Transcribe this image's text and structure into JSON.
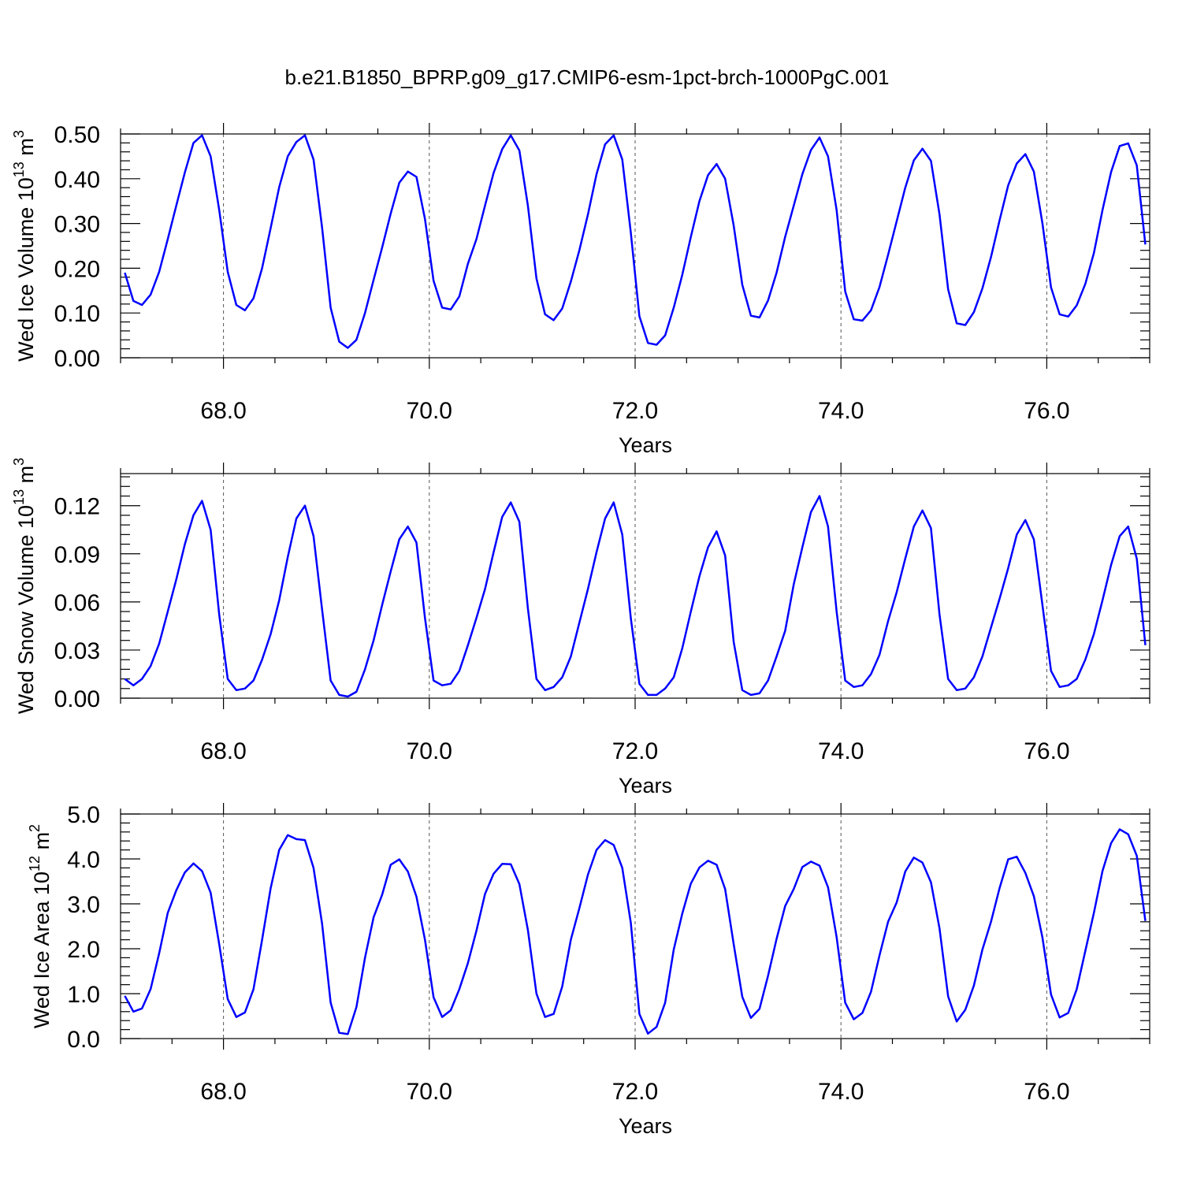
{
  "title": "b.e21.B1850_BPRP.g09_g17.CMIP6-esm-1pct-brch-1000PgC.001",
  "x_tick_labels": [
    "68.0",
    "70.0",
    "72.0",
    "74.0",
    "76.0"
  ],
  "colors": {
    "series": "#0000ff",
    "frame": "#000000",
    "refline": "#555555"
  },
  "chart_data": [
    {
      "type": "line",
      "xlabel": "Years",
      "ylabel": "Wed Ice Volume 10",
      "ylabel_exp": "13",
      "ylabel_unit": " m",
      "ylabel_unit_exp": "3",
      "xlim": [
        67.0,
        77.0
      ],
      "ylim": [
        0.0,
        0.5
      ],
      "xticks": [
        68,
        70,
        72,
        74,
        76
      ],
      "yticks": [
        0.0,
        0.1,
        0.2,
        0.3,
        0.4,
        0.5
      ],
      "ytick_labels": [
        "0.00",
        "0.10",
        "0.20",
        "0.30",
        "0.40",
        "0.50"
      ],
      "x_start": 67.0417,
      "x_step": 0.08333,
      "values": [
        0.19,
        0.127,
        0.118,
        0.141,
        0.192,
        0.265,
        0.34,
        0.414,
        0.48,
        0.497,
        0.45,
        0.33,
        0.192,
        0.118,
        0.106,
        0.133,
        0.2,
        0.29,
        0.381,
        0.45,
        0.482,
        0.497,
        0.443,
        0.29,
        0.112,
        0.036,
        0.022,
        0.04,
        0.1,
        0.174,
        0.246,
        0.322,
        0.391,
        0.416,
        0.404,
        0.31,
        0.172,
        0.112,
        0.108,
        0.137,
        0.21,
        0.265,
        0.34,
        0.413,
        0.466,
        0.497,
        0.463,
        0.34,
        0.177,
        0.097,
        0.084,
        0.11,
        0.17,
        0.24,
        0.32,
        0.41,
        0.477,
        0.497,
        0.443,
        0.28,
        0.093,
        0.033,
        0.029,
        0.05,
        0.112,
        0.185,
        0.27,
        0.35,
        0.408,
        0.433,
        0.4,
        0.295,
        0.163,
        0.094,
        0.09,
        0.128,
        0.19,
        0.27,
        0.34,
        0.41,
        0.464,
        0.492,
        0.45,
        0.33,
        0.148,
        0.086,
        0.083,
        0.106,
        0.158,
        0.23,
        0.305,
        0.38,
        0.441,
        0.467,
        0.44,
        0.32,
        0.153,
        0.077,
        0.073,
        0.102,
        0.155,
        0.225,
        0.307,
        0.385,
        0.434,
        0.455,
        0.416,
        0.3,
        0.157,
        0.097,
        0.092,
        0.117,
        0.165,
        0.234,
        0.33,
        0.415,
        0.473,
        0.479,
        0.43,
        0.253
      ]
    },
    {
      "type": "line",
      "xlabel": "Years",
      "ylabel": "Wed Snow Volume 10",
      "ylabel_exp": "13",
      "ylabel_unit": " m",
      "ylabel_unit_exp": "3",
      "xlim": [
        67.0,
        77.0
      ],
      "ylim": [
        0.0,
        0.14
      ],
      "xticks": [
        68,
        70,
        72,
        74,
        76
      ],
      "yticks": [
        0.0,
        0.03,
        0.06,
        0.09,
        0.12
      ],
      "ytick_labels": [
        "0.00",
        "0.03",
        "0.06",
        "0.09",
        "0.12"
      ],
      "x_start": 67.0417,
      "x_step": 0.08333,
      "values": [
        0.012,
        0.008,
        0.012,
        0.02,
        0.034,
        0.054,
        0.074,
        0.096,
        0.114,
        0.123,
        0.105,
        0.052,
        0.012,
        0.005,
        0.006,
        0.011,
        0.024,
        0.04,
        0.061,
        0.088,
        0.112,
        0.12,
        0.101,
        0.055,
        0.011,
        0.002,
        0.001,
        0.004,
        0.018,
        0.036,
        0.058,
        0.079,
        0.099,
        0.107,
        0.097,
        0.05,
        0.011,
        0.008,
        0.009,
        0.017,
        0.033,
        0.05,
        0.068,
        0.091,
        0.113,
        0.122,
        0.11,
        0.056,
        0.012,
        0.005,
        0.007,
        0.013,
        0.026,
        0.047,
        0.068,
        0.091,
        0.112,
        0.122,
        0.102,
        0.05,
        0.009,
        0.002,
        0.002,
        0.006,
        0.013,
        0.031,
        0.054,
        0.076,
        0.094,
        0.104,
        0.089,
        0.035,
        0.005,
        0.002,
        0.003,
        0.011,
        0.026,
        0.042,
        0.071,
        0.094,
        0.116,
        0.126,
        0.107,
        0.054,
        0.011,
        0.007,
        0.008,
        0.015,
        0.027,
        0.048,
        0.066,
        0.087,
        0.107,
        0.117,
        0.106,
        0.052,
        0.012,
        0.005,
        0.006,
        0.013,
        0.026,
        0.044,
        0.062,
        0.081,
        0.102,
        0.111,
        0.099,
        0.058,
        0.017,
        0.007,
        0.008,
        0.012,
        0.024,
        0.04,
        0.061,
        0.083,
        0.101,
        0.107,
        0.087,
        0.033
      ]
    },
    {
      "type": "line",
      "xlabel": "Years",
      "ylabel": "Wed Ice Area 10",
      "ylabel_exp": "12",
      "ylabel_unit": " m",
      "ylabel_unit_exp": "2",
      "xlim": [
        67.0,
        77.0
      ],
      "ylim": [
        0.0,
        5.0
      ],
      "xticks": [
        68,
        70,
        72,
        74,
        76
      ],
      "yticks": [
        0.0,
        1.0,
        2.0,
        3.0,
        4.0,
        5.0
      ],
      "ytick_labels": [
        "0.0",
        "1.0",
        "2.0",
        "3.0",
        "4.0",
        "5.0"
      ],
      "x_start": 67.0417,
      "x_step": 0.08333,
      "values": [
        0.95,
        0.6,
        0.67,
        1.1,
        1.9,
        2.8,
        3.3,
        3.7,
        3.9,
        3.73,
        3.25,
        2.1,
        0.88,
        0.48,
        0.58,
        1.1,
        2.2,
        3.35,
        4.2,
        4.53,
        4.44,
        4.42,
        3.8,
        2.55,
        0.8,
        0.13,
        0.1,
        0.7,
        1.8,
        2.7,
        3.2,
        3.87,
        3.99,
        3.72,
        3.16,
        2.2,
        0.92,
        0.48,
        0.63,
        1.1,
        1.68,
        2.4,
        3.22,
        3.67,
        3.89,
        3.88,
        3.44,
        2.42,
        1.0,
        0.48,
        0.55,
        1.16,
        2.2,
        2.9,
        3.65,
        4.2,
        4.42,
        4.31,
        3.8,
        2.58,
        0.55,
        0.11,
        0.26,
        0.8,
        1.98,
        2.78,
        3.45,
        3.81,
        3.96,
        3.87,
        3.33,
        2.1,
        0.93,
        0.46,
        0.66,
        1.4,
        2.22,
        2.95,
        3.33,
        3.82,
        3.94,
        3.85,
        3.37,
        2.26,
        0.8,
        0.43,
        0.57,
        1.04,
        1.85,
        2.6,
        3.03,
        3.72,
        4.03,
        3.92,
        3.48,
        2.45,
        0.94,
        0.38,
        0.64,
        1.18,
        1.98,
        2.6,
        3.35,
        3.99,
        4.05,
        3.69,
        3.17,
        2.25,
        0.98,
        0.47,
        0.57,
        1.1,
        1.95,
        2.8,
        3.73,
        4.35,
        4.66,
        4.55,
        4.07,
        2.62
      ]
    }
  ]
}
